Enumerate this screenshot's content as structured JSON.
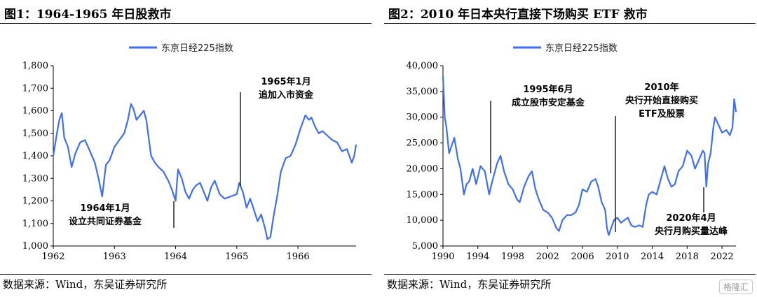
{
  "panels": [
    {
      "title": "图1：1964-1965 年日股救市",
      "source": "数据来源：Wind，东吴证券研究所"
    },
    {
      "title": "图2：2010 年日本央行直接下场购买 ETF 救市",
      "source": "数据来源：Wind，东吴证券研究所"
    }
  ],
  "watermark": "格隆汇",
  "chart_data": [
    {
      "type": "line",
      "legend": "东京日经225指数",
      "series_color": "#3d6ff0",
      "ylim": [
        1000,
        1800
      ],
      "xlim": [
        1962,
        1966.95
      ],
      "y_ticks": [
        1000,
        1100,
        1200,
        1300,
        1400,
        1500,
        1600,
        1700,
        1800
      ],
      "y_tick_labels": [
        "1,000",
        "1,100",
        "1,200",
        "1,300",
        "1,400",
        "1,500",
        "1,600",
        "1,700",
        "1,800"
      ],
      "x_ticks": [
        1962,
        1963,
        1964,
        1965,
        1966
      ],
      "x_tick_labels": [
        "1962",
        "1963",
        "1964",
        "1965",
        "1966"
      ],
      "series": [
        {
          "name": "东京日经225指数",
          "x": [
            1962.0,
            1962.06,
            1962.1,
            1962.14,
            1962.18,
            1962.24,
            1962.3,
            1962.36,
            1962.44,
            1962.52,
            1962.6,
            1962.68,
            1962.74,
            1962.8,
            1962.86,
            1962.92,
            1963.0,
            1963.08,
            1963.16,
            1963.22,
            1963.27,
            1963.31,
            1963.36,
            1963.42,
            1963.48,
            1963.52,
            1963.56,
            1963.6,
            1963.66,
            1963.72,
            1963.8,
            1963.88,
            1963.94,
            1964.0,
            1964.04,
            1964.1,
            1964.16,
            1964.22,
            1964.28,
            1964.34,
            1964.4,
            1964.46,
            1964.52,
            1964.58,
            1964.64,
            1964.72,
            1964.8,
            1964.9,
            1965.0,
            1965.04,
            1965.1,
            1965.16,
            1965.22,
            1965.28,
            1965.34,
            1965.4,
            1965.46,
            1965.5,
            1965.55,
            1965.6,
            1965.66,
            1965.72,
            1965.8,
            1965.88,
            1965.96,
            1966.04,
            1966.12,
            1966.18,
            1966.22,
            1966.28,
            1966.34,
            1966.4,
            1966.48,
            1966.56,
            1966.64,
            1966.72,
            1966.8,
            1966.84,
            1966.88,
            1966.92,
            1966.95
          ],
          "y": [
            1400,
            1500,
            1560,
            1590,
            1480,
            1440,
            1350,
            1410,
            1460,
            1470,
            1420,
            1370,
            1300,
            1220,
            1360,
            1380,
            1440,
            1470,
            1500,
            1560,
            1630,
            1610,
            1560,
            1580,
            1600,
            1560,
            1480,
            1400,
            1370,
            1350,
            1330,
            1290,
            1250,
            1200,
            1340,
            1300,
            1240,
            1210,
            1250,
            1270,
            1280,
            1240,
            1200,
            1260,
            1290,
            1230,
            1210,
            1220,
            1230,
            1280,
            1240,
            1170,
            1210,
            1160,
            1110,
            1140,
            1080,
            1030,
            1040,
            1130,
            1220,
            1330,
            1390,
            1400,
            1450,
            1520,
            1580,
            1560,
            1570,
            1530,
            1500,
            1510,
            1490,
            1470,
            1460,
            1420,
            1430,
            1400,
            1370,
            1400,
            1450
          ]
        }
      ],
      "annotations": [
        {
          "lines": [
            "1964年1月",
            "设立共同证券基金"
          ],
          "x": 1964.0,
          "y": 1200
        },
        {
          "lines": [
            "1965年1月",
            "追加入市资金"
          ],
          "x": 1965.0,
          "y": 1230
        }
      ]
    },
    {
      "type": "line",
      "legend": "东京日经225指数",
      "series_color": "#3d6ff0",
      "ylim": [
        5000,
        40000
      ],
      "xlim": [
        1990,
        2023.6
      ],
      "y_ticks": [
        5000,
        10000,
        15000,
        20000,
        25000,
        30000,
        35000,
        40000
      ],
      "y_tick_labels": [
        "5,000",
        "10,000",
        "15,000",
        "20,000",
        "25,000",
        "30,000",
        "35,000",
        "40,000"
      ],
      "x_ticks": [
        1990,
        1994,
        1998,
        2002,
        2006,
        2010,
        2014,
        2018,
        2022
      ],
      "x_tick_labels": [
        "1990",
        "1994",
        "1998",
        "2002",
        "2006",
        "2010",
        "2014",
        "2018",
        "2022"
      ],
      "series": [
        {
          "name": "东京日经225指数",
          "x": [
            1990.0,
            1990.2,
            1990.4,
            1990.7,
            1991.0,
            1991.3,
            1991.7,
            1992.0,
            1992.4,
            1992.7,
            1993.0,
            1993.4,
            1993.8,
            1994.3,
            1994.8,
            1995.3,
            1995.5,
            1995.8,
            1996.2,
            1996.6,
            1997.0,
            1997.5,
            1998.0,
            1998.5,
            1998.8,
            1999.3,
            1999.8,
            2000.2,
            2000.6,
            2001.0,
            2001.5,
            2002.0,
            2002.5,
            2003.0,
            2003.3,
            2003.7,
            2004.2,
            2004.7,
            2005.2,
            2005.6,
            2006.0,
            2006.5,
            2007.0,
            2007.5,
            2007.8,
            2008.2,
            2008.6,
            2008.8,
            2009.0,
            2009.3,
            2009.6,
            2010.0,
            2010.4,
            2010.8,
            2011.2,
            2011.6,
            2012.0,
            2012.5,
            2012.9,
            2013.3,
            2013.6,
            2014.0,
            2014.5,
            2014.9,
            2015.4,
            2015.8,
            2016.2,
            2016.6,
            2017.0,
            2017.5,
            2018.0,
            2018.5,
            2018.9,
            2019.3,
            2019.8,
            2020.0,
            2020.2,
            2020.4,
            2020.7,
            2021.0,
            2021.2,
            2021.6,
            2022.0,
            2022.5,
            2022.9,
            2023.2,
            2023.4,
            2023.6
          ],
          "y": [
            38000,
            30000,
            28000,
            23000,
            24500,
            26000,
            22000,
            20000,
            15000,
            17000,
            17500,
            20000,
            17000,
            20500,
            19500,
            15000,
            16500,
            18500,
            21000,
            22500,
            19500,
            17000,
            16000,
            14000,
            13500,
            16500,
            18500,
            19500,
            16000,
            14000,
            12000,
            11500,
            10500,
            8500,
            7900,
            10000,
            11000,
            11000,
            11500,
            13000,
            16000,
            15500,
            17500,
            18000,
            16500,
            13500,
            12000,
            8500,
            7100,
            8500,
            10000,
            10500,
            9500,
            10000,
            10500,
            9000,
            8700,
            9000,
            8700,
            13000,
            15000,
            15500,
            15000,
            17500,
            20500,
            18000,
            16500,
            17000,
            19500,
            20500,
            23500,
            22500,
            20000,
            21500,
            23500,
            23000,
            16500,
            21000,
            23000,
            28000,
            30000,
            28500,
            27000,
            27500,
            26500,
            28000,
            33500,
            31000
          ]
        }
      ],
      "annotations": [
        {
          "lines": [
            "1995年6月",
            "成立股市安定基金"
          ],
          "x": 1995.5,
          "y": 16500
        },
        {
          "lines": [
            "2010年",
            "央行开始直接购买",
            "ETF及股票"
          ],
          "x": 2010.0,
          "y": 9500
        },
        {
          "lines": [
            "2020年4月",
            "央行月购买量达峰"
          ],
          "x": 2020.3,
          "y": 16500
        }
      ]
    }
  ]
}
